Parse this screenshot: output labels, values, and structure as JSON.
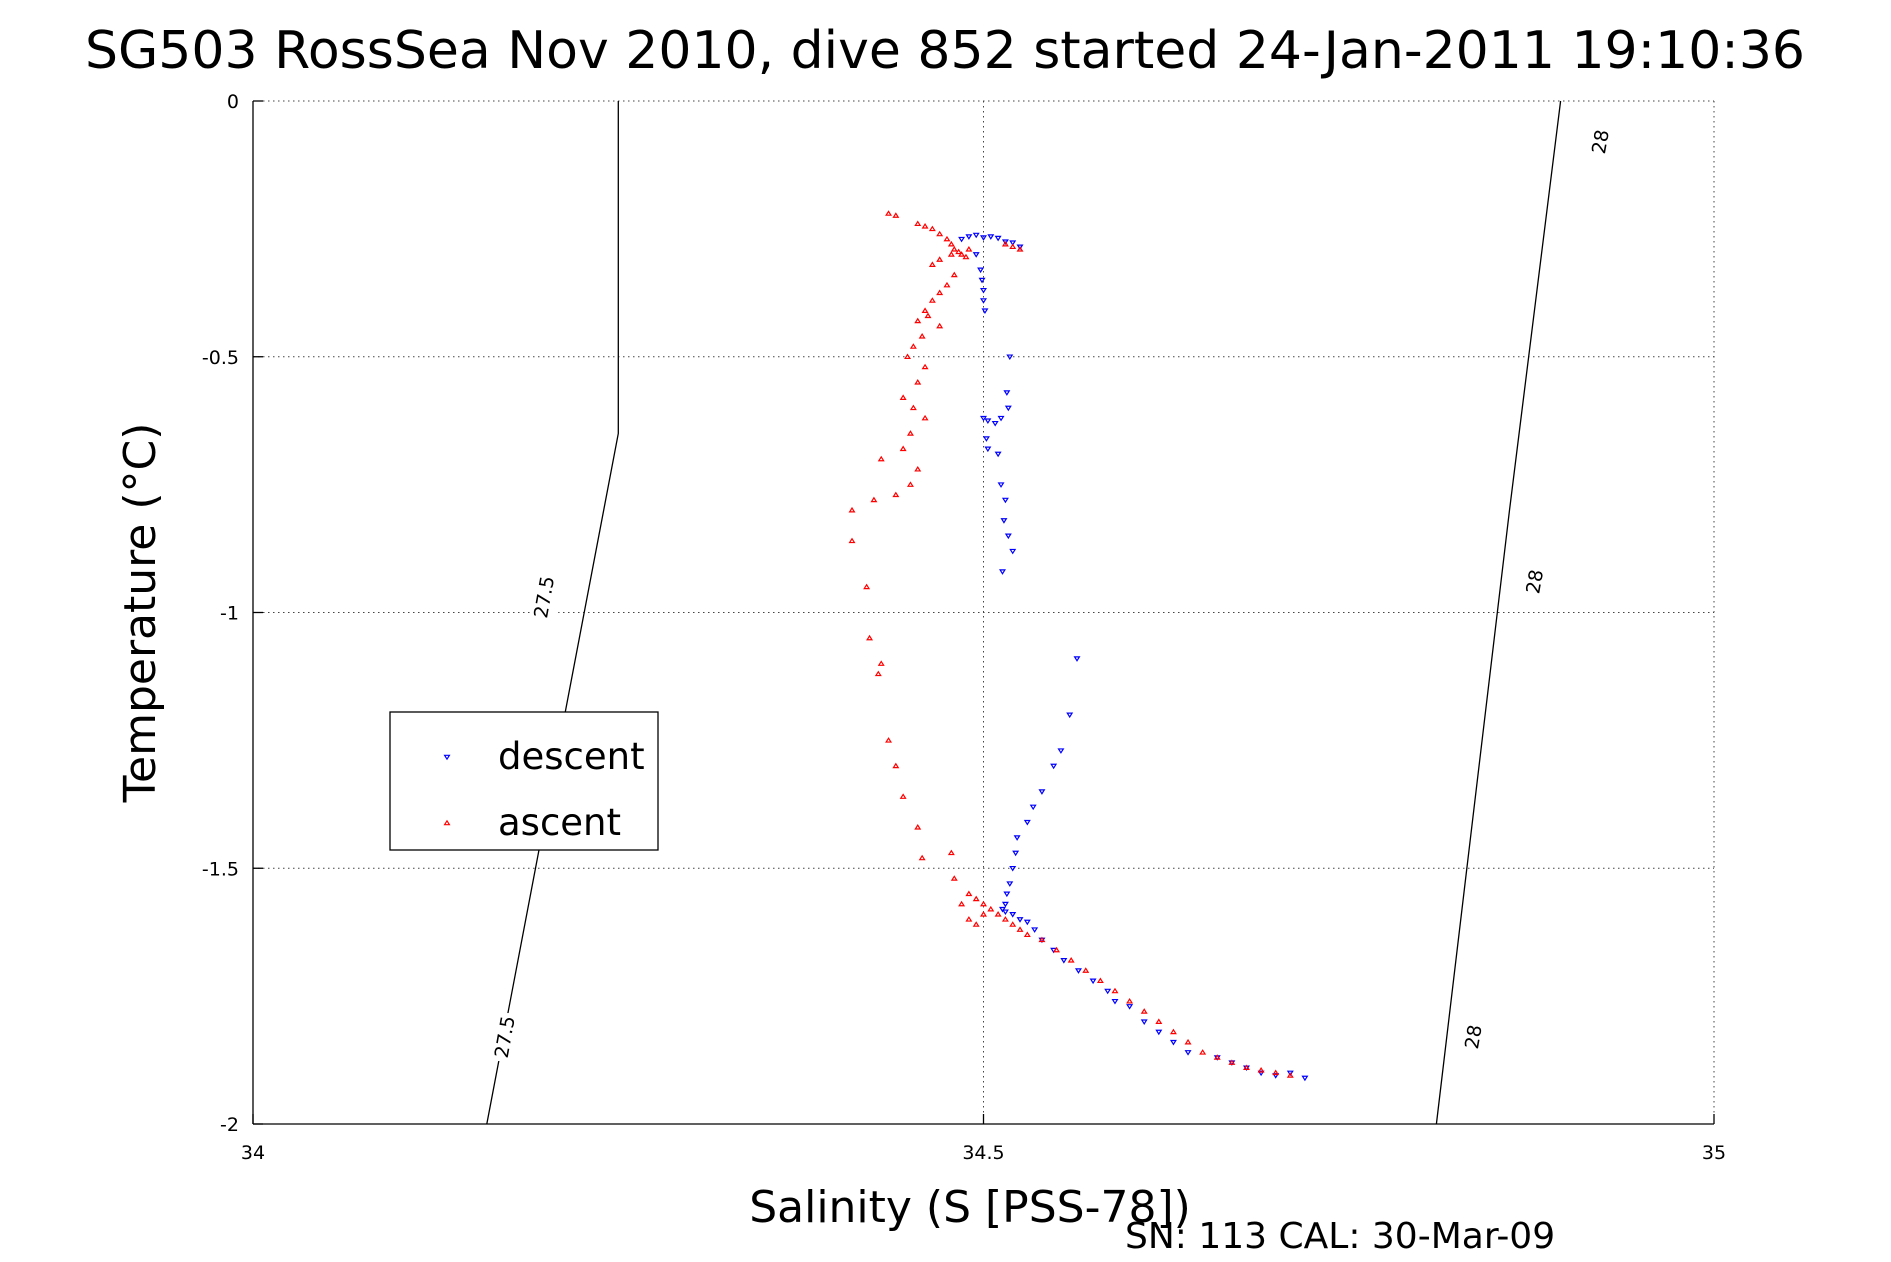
{
  "chart_data": {
    "type": "scatter",
    "title": "SG503 RossSea Nov 2010, dive 852 started 24-Jan-2011 19:10:36",
    "xlabel": "Salinity (S [PSS-78])",
    "ylabel": "Temperature (°C)",
    "xlim": [
      34,
      35
    ],
    "ylim": [
      -2,
      0
    ],
    "x_ticks": [
      "34",
      "34.5",
      "35"
    ],
    "y_ticks": [
      "0",
      "-0.5",
      "-1",
      "-1.5",
      "-2"
    ],
    "grid": true,
    "legend_position": "middle-left",
    "footer": "SN: 113  CAL: 30-Mar-09",
    "contours": [
      {
        "label": "27.5",
        "points": [
          [
            34.16,
            -2.0
          ],
          [
            34.25,
            -0.65
          ],
          [
            34.25,
            0.0
          ]
        ],
        "label_positions": [
          [
            34.173,
            -1.83
          ],
          [
            34.2,
            -0.97
          ]
        ]
      },
      {
        "label": "28",
        "points": [
          [
            34.81,
            -2.0
          ],
          [
            34.86,
            -0.8
          ],
          [
            34.895,
            0.0
          ]
        ],
        "label_positions": [
          [
            34.836,
            -1.83
          ],
          [
            34.878,
            -0.94
          ],
          [
            34.923,
            -0.08
          ]
        ]
      }
    ],
    "series": [
      {
        "name": "descent",
        "color": "#0000ff",
        "marker": "triangle-down",
        "points": [
          [
            34.49,
            -0.265
          ],
          [
            34.495,
            -0.262
          ],
          [
            34.5,
            -0.267
          ],
          [
            34.505,
            -0.265
          ],
          [
            34.51,
            -0.268
          ],
          [
            34.515,
            -0.275
          ],
          [
            34.52,
            -0.277
          ],
          [
            34.525,
            -0.285
          ],
          [
            34.485,
            -0.27
          ],
          [
            34.495,
            -0.3
          ],
          [
            34.498,
            -0.33
          ],
          [
            34.499,
            -0.35
          ],
          [
            34.5,
            -0.37
          ],
          [
            34.5,
            -0.39
          ],
          [
            34.501,
            -0.41
          ],
          [
            34.518,
            -0.5
          ],
          [
            34.516,
            -0.57
          ],
          [
            34.517,
            -0.6
          ],
          [
            34.5,
            -0.62
          ],
          [
            34.503,
            -0.625
          ],
          [
            34.508,
            -0.63
          ],
          [
            34.512,
            -0.62
          ],
          [
            34.502,
            -0.66
          ],
          [
            34.503,
            -0.68
          ],
          [
            34.51,
            -0.69
          ],
          [
            34.512,
            -0.75
          ],
          [
            34.515,
            -0.78
          ],
          [
            34.514,
            -0.82
          ],
          [
            34.517,
            -0.85
          ],
          [
            34.52,
            -0.88
          ],
          [
            34.513,
            -0.92
          ],
          [
            34.564,
            -1.09
          ],
          [
            34.559,
            -1.2
          ],
          [
            34.553,
            -1.27
          ],
          [
            34.548,
            -1.3
          ],
          [
            34.54,
            -1.35
          ],
          [
            34.534,
            -1.38
          ],
          [
            34.53,
            -1.41
          ],
          [
            34.523,
            -1.44
          ],
          [
            34.522,
            -1.47
          ],
          [
            34.52,
            -1.5
          ],
          [
            34.518,
            -1.53
          ],
          [
            34.516,
            -1.55
          ],
          [
            34.515,
            -1.57
          ],
          [
            34.513,
            -1.58
          ],
          [
            34.515,
            -1.585
          ],
          [
            34.52,
            -1.59
          ],
          [
            34.525,
            -1.6
          ],
          [
            34.53,
            -1.605
          ],
          [
            34.535,
            -1.62
          ],
          [
            34.54,
            -1.64
          ],
          [
            34.548,
            -1.66
          ],
          [
            34.555,
            -1.68
          ],
          [
            34.565,
            -1.7
          ],
          [
            34.575,
            -1.72
          ],
          [
            34.585,
            -1.74
          ],
          [
            34.59,
            -1.76
          ],
          [
            34.6,
            -1.77
          ],
          [
            34.61,
            -1.8
          ],
          [
            34.62,
            -1.82
          ],
          [
            34.63,
            -1.84
          ],
          [
            34.64,
            -1.86
          ],
          [
            34.66,
            -1.87
          ],
          [
            34.67,
            -1.88
          ],
          [
            34.68,
            -1.89
          ],
          [
            34.69,
            -1.9
          ],
          [
            34.7,
            -1.905
          ],
          [
            34.71,
            -1.9
          ],
          [
            34.72,
            -1.91
          ]
        ]
      },
      {
        "name": "ascent",
        "color": "#ff0000",
        "marker": "triangle-up",
        "points": [
          [
            34.435,
            -0.22
          ],
          [
            34.44,
            -0.224
          ],
          [
            34.455,
            -0.24
          ],
          [
            34.46,
            -0.245
          ],
          [
            34.465,
            -0.25
          ],
          [
            34.47,
            -0.26
          ],
          [
            34.475,
            -0.27
          ],
          [
            34.478,
            -0.28
          ],
          [
            34.48,
            -0.29
          ],
          [
            34.483,
            -0.295
          ],
          [
            34.485,
            -0.3
          ],
          [
            34.488,
            -0.305
          ],
          [
            34.49,
            -0.29
          ],
          [
            34.515,
            -0.28
          ],
          [
            34.52,
            -0.285
          ],
          [
            34.525,
            -0.29
          ],
          [
            34.47,
            -0.31
          ],
          [
            34.465,
            -0.32
          ],
          [
            34.478,
            -0.3
          ],
          [
            34.48,
            -0.34
          ],
          [
            34.475,
            -0.36
          ],
          [
            34.47,
            -0.375
          ],
          [
            34.465,
            -0.39
          ],
          [
            34.46,
            -0.41
          ],
          [
            34.455,
            -0.43
          ],
          [
            34.462,
            -0.42
          ],
          [
            34.47,
            -0.44
          ],
          [
            34.458,
            -0.46
          ],
          [
            34.452,
            -0.48
          ],
          [
            34.448,
            -0.5
          ],
          [
            34.46,
            -0.52
          ],
          [
            34.455,
            -0.55
          ],
          [
            34.445,
            -0.58
          ],
          [
            34.452,
            -0.6
          ],
          [
            34.46,
            -0.62
          ],
          [
            34.45,
            -0.65
          ],
          [
            34.445,
            -0.68
          ],
          [
            34.43,
            -0.7
          ],
          [
            34.455,
            -0.72
          ],
          [
            34.45,
            -0.75
          ],
          [
            34.44,
            -0.77
          ],
          [
            34.425,
            -0.78
          ],
          [
            34.41,
            -0.8
          ],
          [
            34.41,
            -0.86
          ],
          [
            34.42,
            -0.95
          ],
          [
            34.422,
            -1.05
          ],
          [
            34.43,
            -1.1
          ],
          [
            34.428,
            -1.12
          ],
          [
            34.435,
            -1.25
          ],
          [
            34.44,
            -1.3
          ],
          [
            34.445,
            -1.36
          ],
          [
            34.455,
            -1.42
          ],
          [
            34.458,
            -1.48
          ],
          [
            34.478,
            -1.47
          ],
          [
            34.48,
            -1.52
          ],
          [
            34.49,
            -1.55
          ],
          [
            34.495,
            -1.56
          ],
          [
            34.5,
            -1.57
          ],
          [
            34.505,
            -1.58
          ],
          [
            34.51,
            -1.59
          ],
          [
            34.515,
            -1.6
          ],
          [
            34.52,
            -1.61
          ],
          [
            34.525,
            -1.62
          ],
          [
            34.53,
            -1.63
          ],
          [
            34.54,
            -1.64
          ],
          [
            34.55,
            -1.66
          ],
          [
            34.56,
            -1.68
          ],
          [
            34.57,
            -1.7
          ],
          [
            34.58,
            -1.72
          ],
          [
            34.59,
            -1.74
          ],
          [
            34.6,
            -1.76
          ],
          [
            34.61,
            -1.78
          ],
          [
            34.62,
            -1.8
          ],
          [
            34.63,
            -1.82
          ],
          [
            34.64,
            -1.84
          ],
          [
            34.65,
            -1.86
          ],
          [
            34.66,
            -1.87
          ],
          [
            34.67,
            -1.88
          ],
          [
            34.68,
            -1.89
          ],
          [
            34.69,
            -1.895
          ],
          [
            34.7,
            -1.9
          ],
          [
            34.71,
            -1.905
          ],
          [
            34.49,
            -1.6
          ],
          [
            34.5,
            -1.59
          ],
          [
            34.495,
            -1.61
          ],
          [
            34.485,
            -1.57
          ]
        ]
      }
    ]
  }
}
